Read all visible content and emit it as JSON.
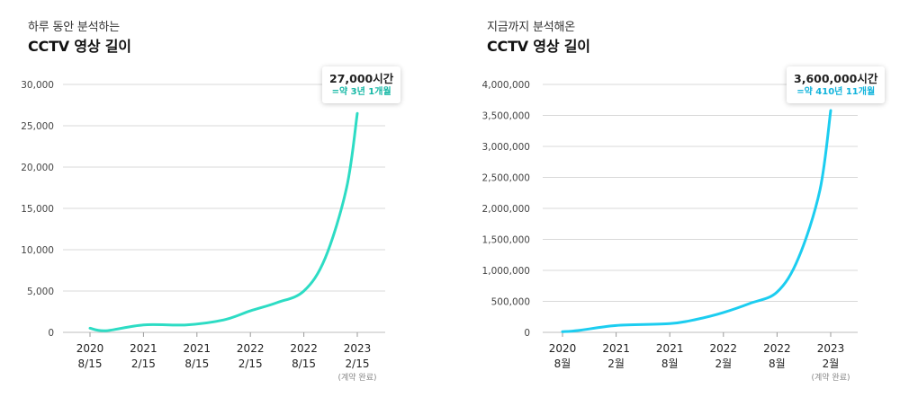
{
  "colors": {
    "left_line": "#2ddcc4",
    "right_line": "#1ccdf0",
    "left_accent": "#17b8a6",
    "right_accent": "#12b4dc",
    "grid": "#d9d9d9",
    "axis_text": "#444444",
    "axis_small": "#888888"
  },
  "left": {
    "subtitle": "하루 동안 분석하는",
    "title": "CCTV 영상 길이",
    "callout_value": "27,000시간",
    "callout_note": "=약 3년 1개월",
    "x_note": "(계약 완료)"
  },
  "right": {
    "subtitle": "지금까지 분석해온",
    "title": "CCTV 영상 길이",
    "callout_value": "3,600,000시간",
    "callout_note": "=약 410년 11개월",
    "x_note": "(계약 완료)"
  },
  "chart_data": [
    {
      "type": "line",
      "title": "하루 동안 분석하는 CCTV 영상 길이",
      "xlabel": "",
      "ylabel": "",
      "ylim": [
        0,
        30000
      ],
      "yticks": [
        0,
        5000,
        10000,
        15000,
        20000,
        25000,
        30000
      ],
      "ytick_labels": [
        "0",
        "5,000",
        "10,000",
        "15,000",
        "20,000",
        "25,000",
        "30,000"
      ],
      "xticks": [
        0,
        1,
        2,
        3,
        4,
        5
      ],
      "xtick_labels": [
        [
          "2020",
          "8/15"
        ],
        [
          "2021",
          "2/15"
        ],
        [
          "2021",
          "8/15"
        ],
        [
          "2022",
          "2/15"
        ],
        [
          "2022",
          "8/15"
        ],
        [
          "2023",
          "2/15"
        ]
      ],
      "grid": true,
      "series": [
        {
          "name": "하루 동안 분석하는 CCTV 영상 길이",
          "x": [
            0,
            0.3,
            1,
            1.8,
            2.5,
            3,
            3.5,
            4,
            4.4,
            4.8,
            5
          ],
          "values": [
            500,
            200,
            900,
            900,
            1500,
            2600,
            3600,
            5000,
            9000,
            17500,
            26500
          ]
        }
      ]
    },
    {
      "type": "line",
      "title": "지금까지 분석해온 CCTV 영상 길이",
      "xlabel": "",
      "ylabel": "",
      "ylim": [
        0,
        4000000
      ],
      "yticks": [
        0,
        500000,
        1000000,
        1500000,
        2000000,
        2500000,
        3000000,
        3500000,
        4000000
      ],
      "ytick_labels": [
        "0",
        "500,000",
        "1,000,000",
        "1,500,000",
        "2,000,000",
        "2,500,000",
        "3,000,000",
        "3,500,000",
        "4,000,000"
      ],
      "xticks": [
        0,
        1,
        2,
        3,
        4,
        5
      ],
      "xtick_labels": [
        [
          "2020",
          "8월"
        ],
        [
          "2021",
          "2월"
        ],
        [
          "2021",
          "8월"
        ],
        [
          "2022",
          "2월"
        ],
        [
          "2022",
          "8월"
        ],
        [
          "2023",
          "2월"
        ]
      ],
      "grid": true,
      "series": [
        {
          "name": "지금까지 분석해온 CCTV 영상 길이",
          "x": [
            0,
            0.3,
            1,
            2,
            2.5,
            3,
            3.5,
            4,
            4.4,
            4.8,
            5
          ],
          "values": [
            10000,
            30000,
            110000,
            140000,
            210000,
            320000,
            470000,
            650000,
            1200000,
            2300000,
            3580000
          ]
        }
      ]
    }
  ]
}
